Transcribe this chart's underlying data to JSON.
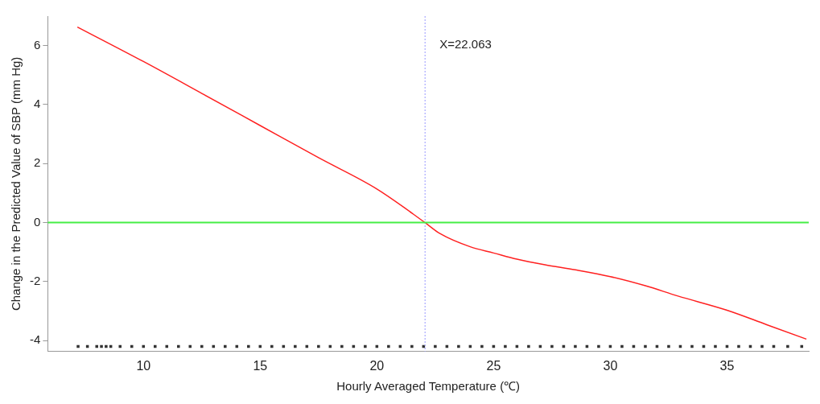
{
  "chart_data": {
    "type": "line",
    "xlabel": "Hourly Averaged Temperature (℃)",
    "ylabel": "Change in the Predicted Value of SBP (mm Hg)",
    "xlim": [
      5.9,
      38.5
    ],
    "xticks": [
      10,
      15,
      20,
      25,
      30,
      35
    ],
    "ylim": [
      -4.37,
      7.0
    ],
    "yticks": [
      -4,
      -2,
      0,
      2,
      4,
      6
    ],
    "grid": false,
    "legend": false,
    "series": [
      {
        "type": "line",
        "color": "#ff2020",
        "x": [
          7.17,
          10,
          12.5,
          15,
          17.5,
          20,
          22.063,
          22.7,
          24,
          25,
          26,
          27.2,
          28.5,
          30,
          31.5,
          32.9,
          35,
          36.7,
          38.4
        ],
        "values": [
          6.63,
          5.46,
          4.38,
          3.29,
          2.2,
          1.14,
          0,
          -0.37,
          -0.82,
          -1.03,
          -1.24,
          -1.43,
          -1.6,
          -1.83,
          -2.14,
          -2.49,
          -2.97,
          -3.46,
          -3.95
        ]
      },
      {
        "type": "scatter",
        "marker": "square",
        "color": "#333333",
        "x": [
          7.2,
          7.6,
          8.0,
          8.2,
          8.4,
          8.6,
          9.0,
          9.5,
          10.0,
          10.5,
          11.0,
          11.5,
          12.0,
          12.5,
          13.0,
          13.5,
          14.0,
          14.5,
          15.0,
          15.5,
          16.0,
          16.5,
          17.0,
          17.5,
          18.0,
          18.5,
          19.0,
          19.5,
          20.0,
          20.5,
          21.0,
          21.5,
          22.0,
          22.5,
          23.0,
          23.5,
          24.0,
          24.5,
          25.0,
          25.5,
          26.0,
          26.5,
          27.0,
          27.5,
          28.0,
          28.5,
          29.0,
          29.5,
          30.0,
          30.5,
          31.0,
          31.5,
          32.0,
          32.5,
          33.0,
          33.5,
          34.0,
          34.5,
          35.0,
          35.5,
          36.0,
          36.5,
          37.0,
          37.6,
          38.2
        ],
        "values": [
          -4.2,
          -4.2,
          -4.2,
          -4.2,
          -4.2,
          -4.2,
          -4.2,
          -4.2,
          -4.2,
          -4.2,
          -4.2,
          -4.2,
          -4.2,
          -4.2,
          -4.2,
          -4.2,
          -4.2,
          -4.2,
          -4.2,
          -4.2,
          -4.2,
          -4.2,
          -4.2,
          -4.2,
          -4.2,
          -4.2,
          -4.2,
          -4.2,
          -4.2,
          -4.2,
          -4.2,
          -4.2,
          -4.2,
          -4.2,
          -4.2,
          -4.2,
          -4.2,
          -4.2,
          -4.2,
          -4.2,
          -4.2,
          -4.2,
          -4.2,
          -4.2,
          -4.2,
          -4.2,
          -4.2,
          -4.2,
          -4.2,
          -4.2,
          -4.2,
          -4.2,
          -4.2,
          -4.2,
          -4.2,
          -4.2,
          -4.2,
          -4.2,
          -4.2,
          -4.2,
          -4.2,
          -4.2,
          -4.2,
          -4.2,
          -4.2
        ]
      }
    ],
    "ref_lines": [
      {
        "axis": "x",
        "value": 22.063,
        "label": "X=22.063",
        "color": "#9999ff",
        "line_style": "dotted"
      },
      {
        "axis": "y",
        "value": 0,
        "color": "#44ee44",
        "line_style": "solid"
      }
    ]
  }
}
